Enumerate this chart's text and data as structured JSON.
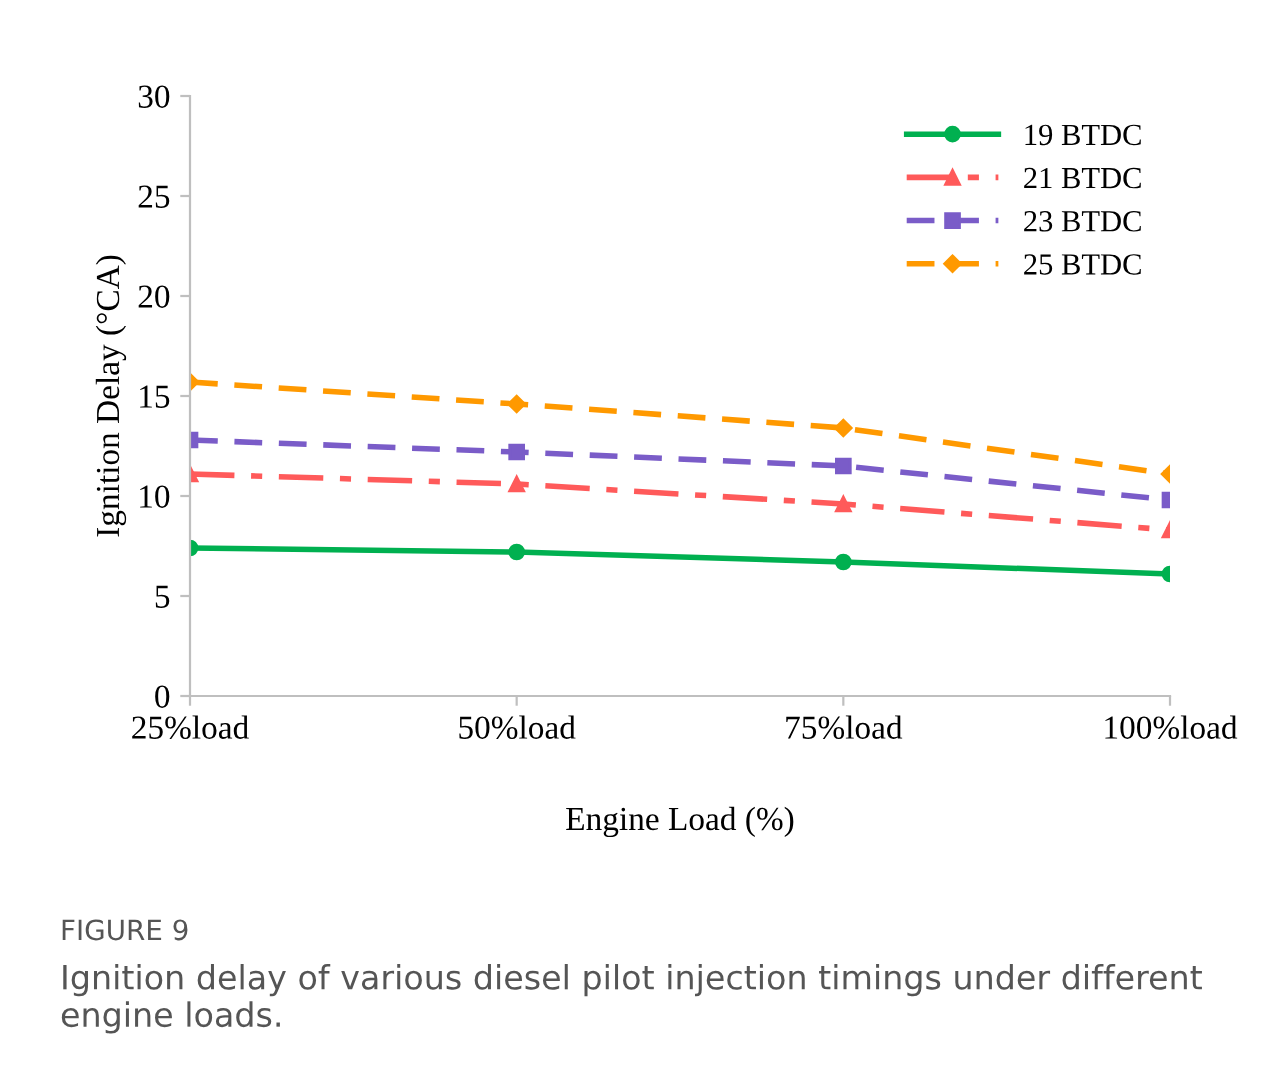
{
  "chart_data": {
    "type": "line",
    "xlabel": "Engine Load (%)",
    "ylabel": "Ignition Delay (°CA)",
    "categories": [
      "25%load",
      "50%load",
      "75%load",
      "100%load"
    ],
    "series": [
      {
        "name": "19 BTDC",
        "color": "#00b050",
        "values": [
          7.4,
          7.2,
          6.7,
          6.1
        ],
        "marker": "circle",
        "line_style": "solid"
      },
      {
        "name": "21 BTDC",
        "color": "#ff5a5a",
        "values": [
          11.1,
          10.6,
          9.6,
          8.3
        ],
        "marker": "triangle",
        "line_style": "dashdot"
      },
      {
        "name": "23 BTDC",
        "color": "#7a5cc8",
        "values": [
          12.8,
          12.2,
          11.5,
          9.8
        ],
        "marker": "square",
        "line_style": "dashed"
      },
      {
        "name": "25 BTDC",
        "color": "#ff9900",
        "values": [
          15.7,
          14.6,
          13.4,
          11.1
        ],
        "marker": "diamond",
        "line_style": "dashed"
      }
    ],
    "ylim": [
      0,
      30
    ],
    "yticks": [
      0,
      5,
      10,
      15,
      20,
      25,
      30
    ],
    "grid": false,
    "legend": "top right",
    "annotations": [
      "FIGURE 9",
      "Ignition delay of various diesel pilot injection timings under different engine loads."
    ]
  }
}
